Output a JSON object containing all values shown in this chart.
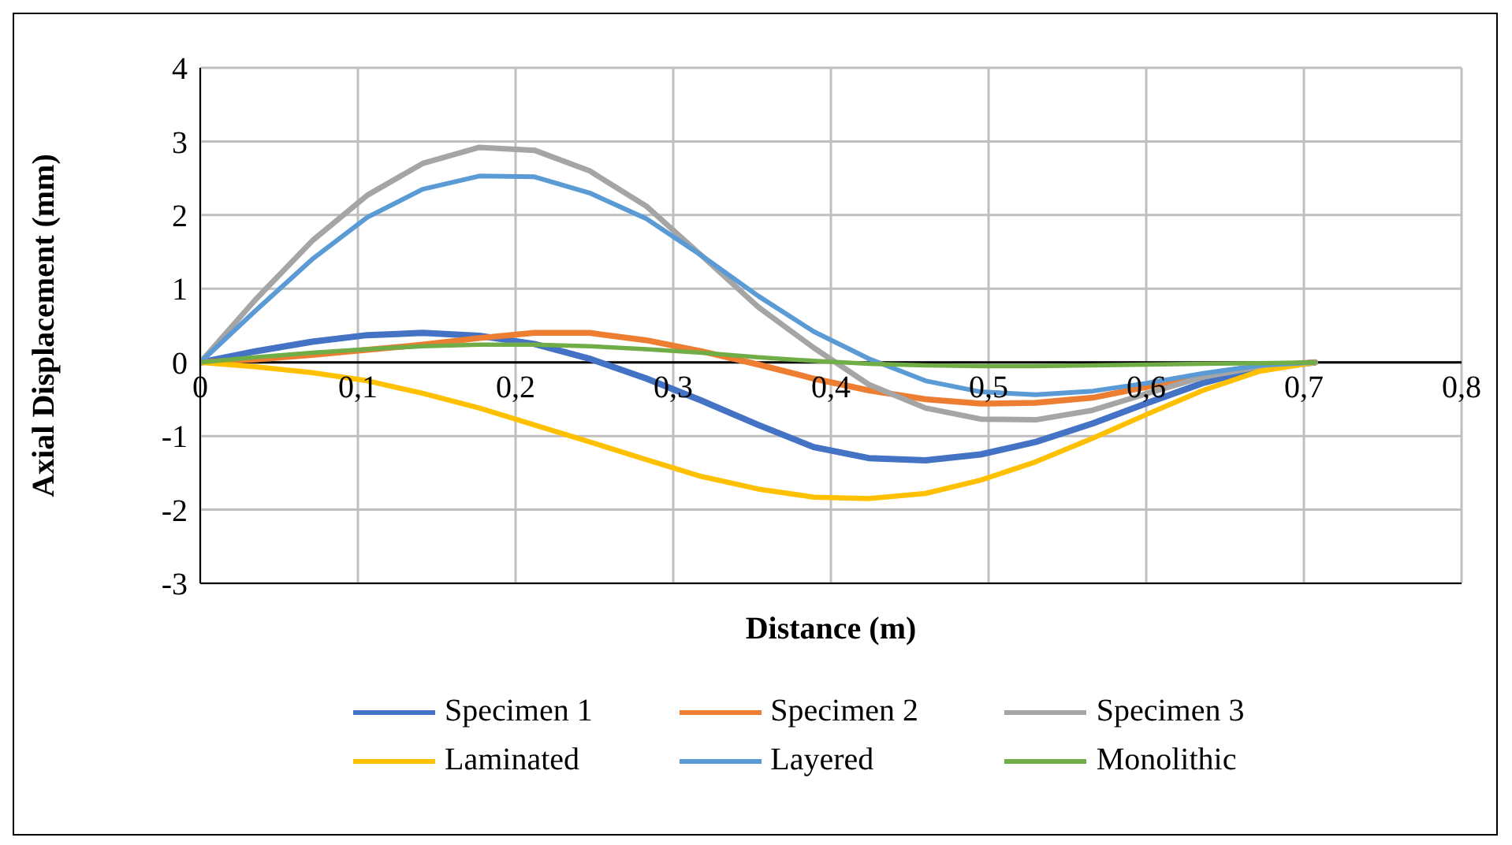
{
  "chart_data": {
    "type": "line",
    "xlabel": "Distance (m)",
    "ylabel": "Axial Displacement (mm)",
    "x": [
      0,
      0.035,
      0.071,
      0.106,
      0.141,
      0.177,
      0.212,
      0.247,
      0.283,
      0.318,
      0.354,
      0.389,
      0.424,
      0.46,
      0.495,
      0.53,
      0.566,
      0.601,
      0.636,
      0.672,
      0.707
    ],
    "series": [
      {
        "name": "Specimen 1",
        "color": "#4472c4",
        "values": [
          0,
          0.15,
          0.28,
          0.37,
          0.4,
          0.36,
          0.25,
          0.05,
          -0.22,
          -0.52,
          -0.85,
          -1.15,
          -1.3,
          -1.33,
          -1.25,
          -1.08,
          -0.83,
          -0.55,
          -0.28,
          -0.08,
          0
        ]
      },
      {
        "name": "Specimen 2",
        "color": "#ed7d31",
        "values": [
          0,
          0.04,
          0.1,
          0.17,
          0.24,
          0.33,
          0.4,
          0.4,
          0.3,
          0.15,
          -0.03,
          -0.22,
          -0.38,
          -0.5,
          -0.56,
          -0.55,
          -0.48,
          -0.33,
          -0.17,
          -0.05,
          0
        ]
      },
      {
        "name": "Specimen 3",
        "color": "#a5a5a5",
        "values": [
          0,
          0.85,
          1.65,
          2.27,
          2.7,
          2.92,
          2.88,
          2.6,
          2.12,
          1.45,
          0.75,
          0.2,
          -0.3,
          -0.62,
          -0.77,
          -0.78,
          -0.65,
          -0.42,
          -0.2,
          -0.06,
          0
        ]
      },
      {
        "name": "Laminated",
        "color": "#ffc000",
        "values": [
          0,
          -0.06,
          -0.14,
          -0.25,
          -0.42,
          -0.62,
          -0.85,
          -1.08,
          -1.32,
          -1.55,
          -1.72,
          -1.83,
          -1.85,
          -1.78,
          -1.6,
          -1.35,
          -1.03,
          -0.7,
          -0.38,
          -0.12,
          0
        ]
      },
      {
        "name": "Layered",
        "color": "#5b9bd5",
        "values": [
          0,
          0.7,
          1.4,
          1.97,
          2.35,
          2.53,
          2.52,
          2.3,
          1.95,
          1.45,
          0.9,
          0.42,
          0.05,
          -0.25,
          -0.4,
          -0.44,
          -0.39,
          -0.28,
          -0.15,
          -0.04,
          0
        ]
      },
      {
        "name": "Monolithic",
        "color": "#70ad47",
        "values": [
          0,
          0.07,
          0.13,
          0.18,
          0.22,
          0.24,
          0.24,
          0.22,
          0.18,
          0.13,
          0.07,
          0.02,
          -0.02,
          -0.04,
          -0.05,
          -0.05,
          -0.04,
          -0.03,
          -0.02,
          -0.01,
          0
        ]
      }
    ],
    "xlim": [
      0,
      0.8
    ],
    "xticks": [
      {
        "value": 0,
        "label": "0"
      },
      {
        "value": 0.1,
        "label": "0,1"
      },
      {
        "value": 0.2,
        "label": "0,2"
      },
      {
        "value": 0.3,
        "label": "0,3"
      },
      {
        "value": 0.4,
        "label": "0,4"
      },
      {
        "value": 0.5,
        "label": "0,5"
      },
      {
        "value": 0.6,
        "label": "0,6"
      },
      {
        "value": 0.7,
        "label": "0,7"
      },
      {
        "value": 0.8,
        "label": "0,8"
      }
    ],
    "ylim": [
      -3,
      4
    ],
    "yticks": [
      -3,
      -2,
      -1,
      0,
      1,
      2,
      3,
      4
    ],
    "grid": true,
    "legend": "bottom",
    "marker": "none",
    "line_style": "solid"
  }
}
